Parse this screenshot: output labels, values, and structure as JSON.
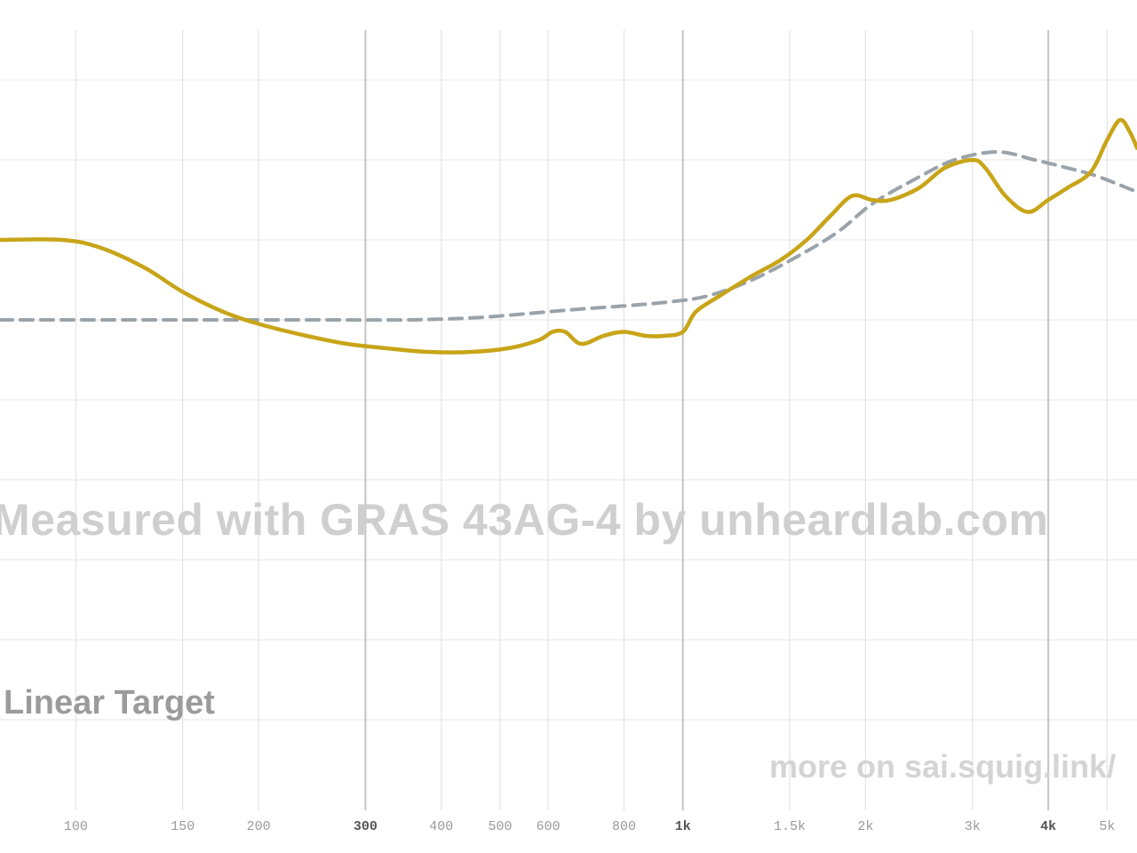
{
  "chart_data": {
    "type": "line",
    "title": "",
    "xlabel": "",
    "ylabel": "",
    "x_scale": "log",
    "xlim": [
      75,
      5600
    ],
    "ylim": [
      -12,
      8
    ],
    "grid": true,
    "x_ticks": [
      {
        "value": 100,
        "label": "100",
        "major": false
      },
      {
        "value": 150,
        "label": "150",
        "major": false
      },
      {
        "value": 200,
        "label": "200",
        "major": false
      },
      {
        "value": 300,
        "label": "300",
        "major": true
      },
      {
        "value": 400,
        "label": "400",
        "major": false
      },
      {
        "value": 500,
        "label": "500",
        "major": false
      },
      {
        "value": 600,
        "label": "600",
        "major": false
      },
      {
        "value": 800,
        "label": "800",
        "major": false
      },
      {
        "value": 1000,
        "label": "1k",
        "major": true
      },
      {
        "value": 1500,
        "label": "1.5k",
        "major": false
      },
      {
        "value": 2000,
        "label": "2k",
        "major": false
      },
      {
        "value": 3000,
        "label": "3k",
        "major": false
      },
      {
        "value": 4000,
        "label": "4k",
        "major": true
      },
      {
        "value": 5000,
        "label": "5k",
        "major": false
      }
    ],
    "y_grid": [
      6,
      4,
      2,
      0,
      -2,
      -4,
      -6,
      -8,
      -10
    ],
    "series": [
      {
        "name": "",
        "color": "#c8a418",
        "style": "solid",
        "points": [
          [
            75,
            2.0
          ],
          [
            95,
            2.0
          ],
          [
            110,
            1.8
          ],
          [
            130,
            1.3
          ],
          [
            150,
            0.7
          ],
          [
            175,
            0.2
          ],
          [
            200,
            -0.1
          ],
          [
            240,
            -0.4
          ],
          [
            280,
            -0.6
          ],
          [
            320,
            -0.7
          ],
          [
            380,
            -0.8
          ],
          [
            450,
            -0.8
          ],
          [
            520,
            -0.7
          ],
          [
            580,
            -0.5
          ],
          [
            610,
            -0.3
          ],
          [
            640,
            -0.3
          ],
          [
            680,
            -0.6
          ],
          [
            740,
            -0.4
          ],
          [
            800,
            -0.3
          ],
          [
            870,
            -0.4
          ],
          [
            930,
            -0.4
          ],
          [
            1000,
            -0.3
          ],
          [
            1050,
            0.2
          ],
          [
            1150,
            0.6
          ],
          [
            1300,
            1.1
          ],
          [
            1450,
            1.5
          ],
          [
            1600,
            2.0
          ],
          [
            1750,
            2.6
          ],
          [
            1900,
            3.1
          ],
          [
            2050,
            3.0
          ],
          [
            2200,
            3.0
          ],
          [
            2450,
            3.3
          ],
          [
            2700,
            3.8
          ],
          [
            3000,
            4.0
          ],
          [
            3150,
            3.8
          ],
          [
            3400,
            3.1
          ],
          [
            3700,
            2.7
          ],
          [
            4000,
            3.0
          ],
          [
            4300,
            3.3
          ],
          [
            4700,
            3.7
          ],
          [
            5000,
            4.5
          ],
          [
            5250,
            5.0
          ],
          [
            5450,
            4.7
          ],
          [
            5600,
            4.3
          ]
        ]
      },
      {
        "name": "Linear Target",
        "color": "#9aa3a9",
        "style": "dashed",
        "points": [
          [
            75,
            0.0
          ],
          [
            150,
            0.0
          ],
          [
            250,
            0.0
          ],
          [
            350,
            0.0
          ],
          [
            450,
            0.05
          ],
          [
            550,
            0.15
          ],
          [
            650,
            0.25
          ],
          [
            800,
            0.35
          ],
          [
            950,
            0.45
          ],
          [
            1100,
            0.6
          ],
          [
            1300,
            1.0
          ],
          [
            1550,
            1.6
          ],
          [
            1800,
            2.2
          ],
          [
            2050,
            2.9
          ],
          [
            2400,
            3.5
          ],
          [
            2800,
            4.0
          ],
          [
            3300,
            4.2
          ],
          [
            3800,
            4.0
          ],
          [
            4300,
            3.8
          ],
          [
            4800,
            3.6
          ],
          [
            5600,
            3.2
          ]
        ]
      }
    ],
    "annotations": {
      "watermark": "Measured with GRAS 43AG-4 by unheardlab.com",
      "source": "more on sai.squig.link/"
    }
  }
}
